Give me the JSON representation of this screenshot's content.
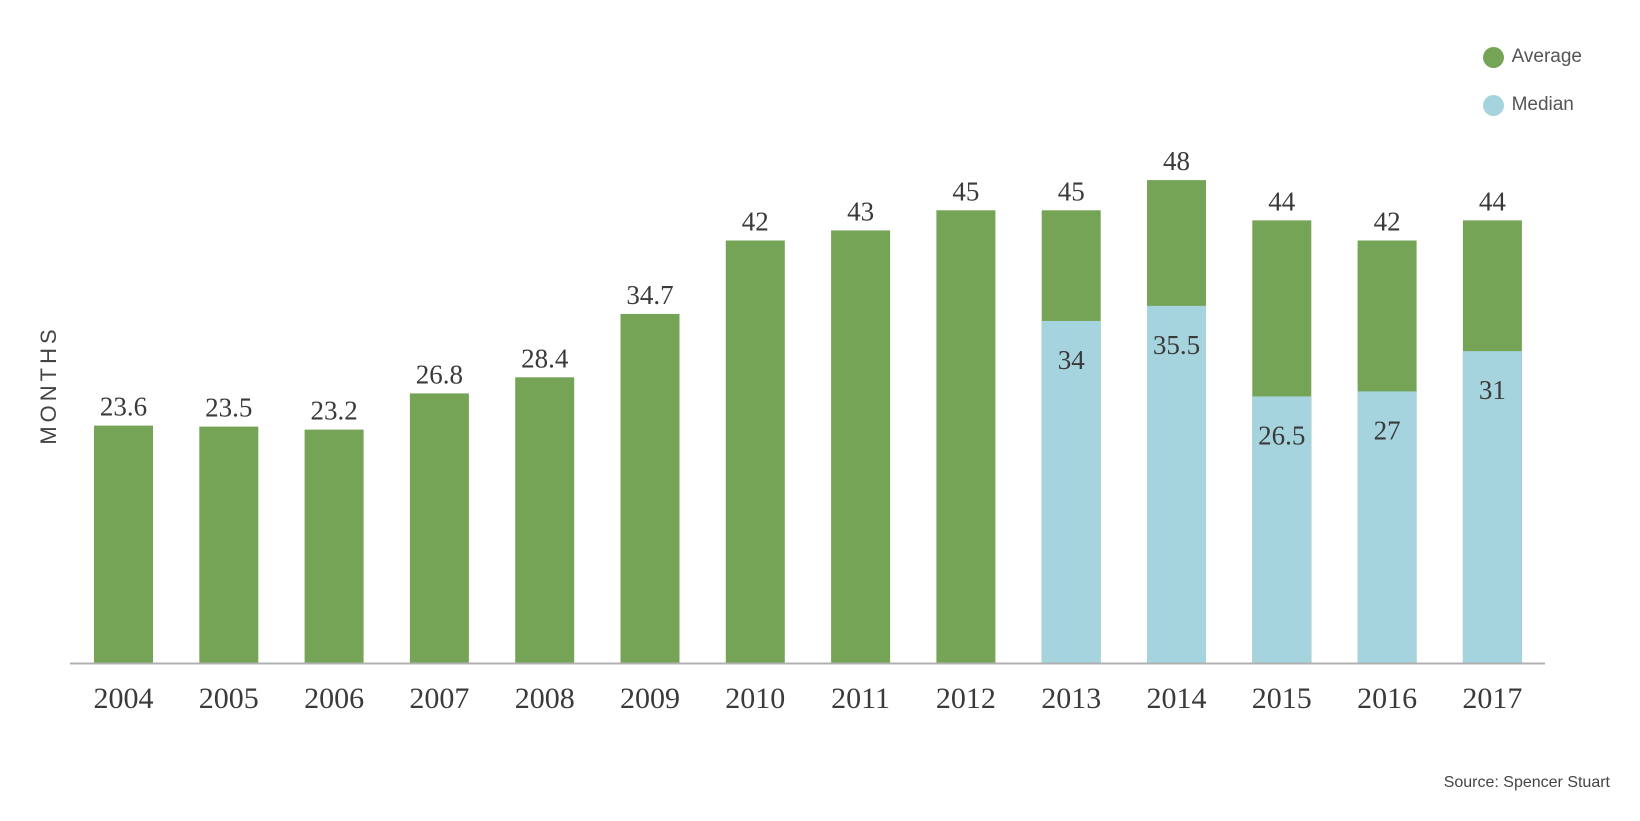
{
  "chart_data": {
    "type": "bar",
    "title": "",
    "xlabel": "",
    "ylabel": "MONTHS",
    "ylim": [
      0,
      58
    ],
    "grid": false,
    "legend_position": "top-right",
    "categories": [
      "2004",
      "2005",
      "2006",
      "2007",
      "2008",
      "2009",
      "2010",
      "2011",
      "2012",
      "2013",
      "2014",
      "2015",
      "2016",
      "2017"
    ],
    "series": [
      {
        "name": "Average",
        "color": "#76a456",
        "values": [
          23.6,
          23.5,
          23.2,
          26.8,
          28.4,
          34.7,
          42,
          43,
          45,
          45,
          48,
          44,
          42,
          44
        ],
        "labels": [
          "23.6",
          "23.5",
          "23.2",
          "26.8",
          "28.4",
          "34.7",
          "42",
          "43",
          "45",
          "45",
          "48",
          "44",
          "42",
          "44"
        ]
      },
      {
        "name": "Median",
        "color": "#a5d3de",
        "values": [
          null,
          null,
          null,
          null,
          null,
          null,
          null,
          null,
          null,
          34,
          35.5,
          26.5,
          27,
          31
        ],
        "labels": [
          "",
          "",
          "",
          "",
          "",
          "",
          "",
          "",
          "",
          "34",
          "35.5",
          "26.5",
          "27",
          "31"
        ]
      }
    ],
    "source": "Source: Spencer Stuart"
  }
}
